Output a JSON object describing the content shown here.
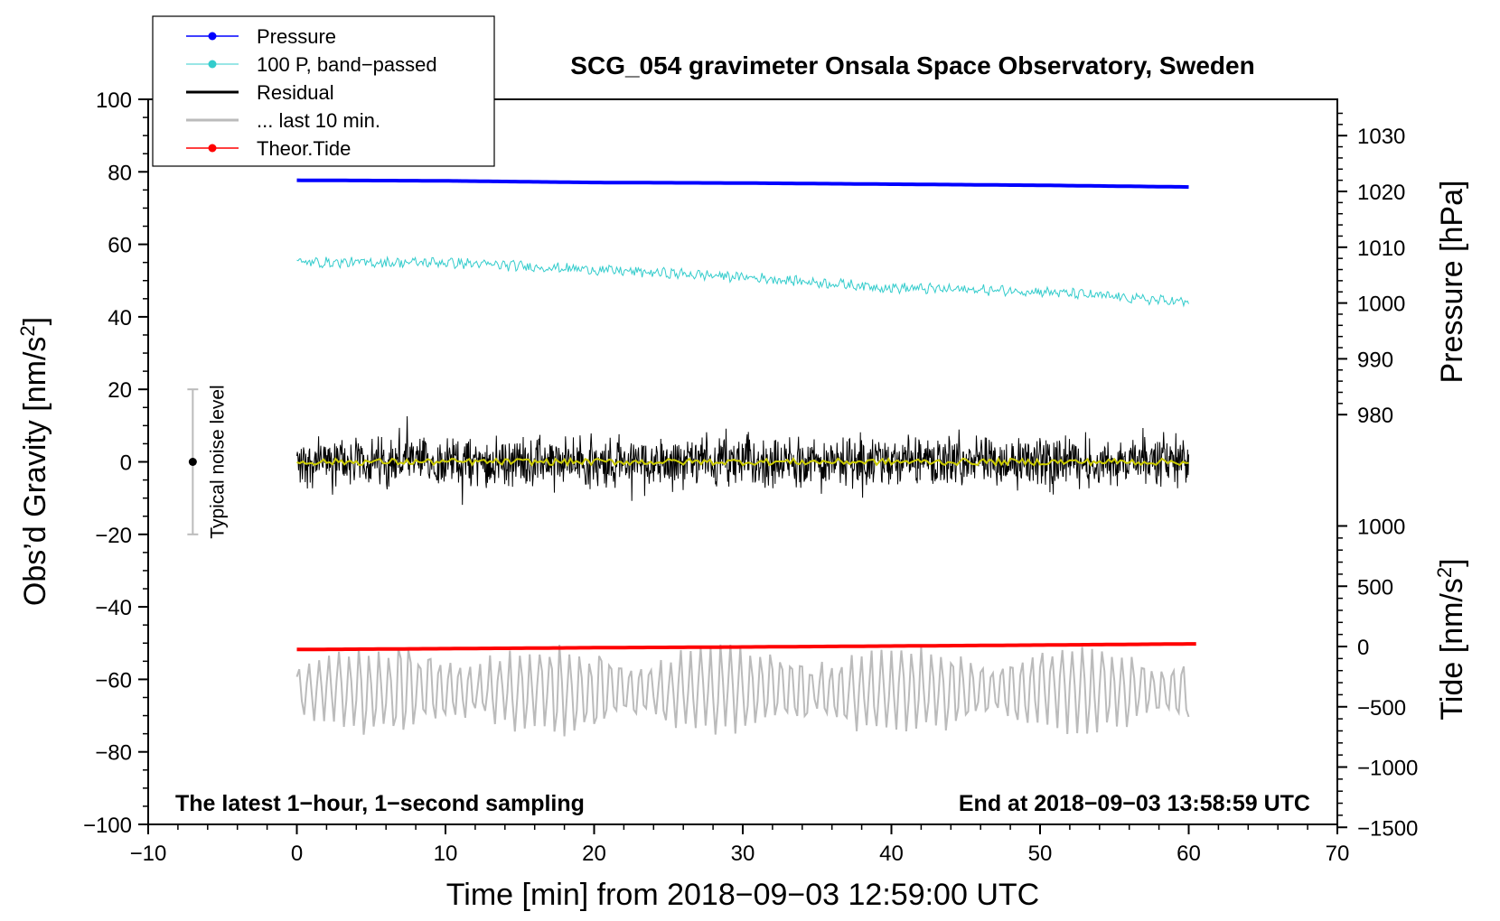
{
  "chart_data": {
    "type": "line",
    "title": "SCG_054 gravimeter Onsala Space Observatory, Sweden",
    "xlabel": "Time [min] from 2018−09−03 12:59:00 UTC",
    "xlim": [
      -10,
      70
    ],
    "xticks": [
      -10,
      0,
      10,
      20,
      30,
      40,
      50,
      60,
      70
    ],
    "xtick_labels": [
      "−10",
      "0",
      "10",
      "20",
      "30",
      "40",
      "50",
      "60",
      "70"
    ],
    "left_axis": {
      "label_main": "Obs’d Gravity [nm/s",
      "label_sup": "2",
      "label_end": "]",
      "ylim": [
        -100,
        100
      ],
      "ticks": [
        -100,
        -80,
        -60,
        -40,
        -20,
        0,
        20,
        40,
        60,
        80,
        100
      ],
      "tick_labels": [
        "−100",
        "−80",
        "−60",
        "−40",
        "−20",
        "0",
        "20",
        "40",
        "60",
        "80",
        "100"
      ]
    },
    "pressure_axis": {
      "label": "Pressure [hPa]",
      "ticks": [
        980,
        990,
        1000,
        1010,
        1020,
        1030
      ],
      "tick_labels": [
        "980",
        "990",
        "1000",
        "1010",
        "1020",
        "1030"
      ]
    },
    "tide_axis": {
      "label_main": "Tide [nm/s",
      "label_sup": "2",
      "label_end": "]",
      "ticks": [
        -1500,
        -1000,
        -500,
        0,
        500,
        1000
      ],
      "tick_labels": [
        "−1500",
        "−1000",
        "−500",
        "0",
        "500",
        "1000"
      ]
    },
    "series": [
      {
        "name": "Pressure",
        "color": "#0000ff",
        "x": [
          0,
          10,
          20,
          30,
          40,
          50,
          60
        ],
        "y_hpa": [
          1022.0,
          1021.9,
          1021.6,
          1021.5,
          1021.3,
          1021.1,
          1020.8
        ]
      },
      {
        "name": "100 P, band−passed",
        "color": "#33cccc",
        "x": [
          0,
          10,
          20,
          30,
          40,
          50,
          60
        ],
        "y": [
          55,
          55,
          53,
          51,
          48,
          47,
          44
        ]
      },
      {
        "name": "Residual",
        "color": "#000000",
        "x": [
          0,
          60
        ],
        "y": [
          0,
          0
        ],
        "amplitude": 8
      },
      {
        "name": "... last 10 min.",
        "color": "#bbbbbb",
        "x": [
          0,
          60
        ],
        "y": [
          -63,
          -63
        ],
        "amplitude": 10
      },
      {
        "name": "Theor.Tide",
        "color": "#ff0000",
        "x": [
          0,
          10,
          20,
          30,
          40,
          50,
          60.5
        ],
        "y_tide": [
          -25,
          -18,
          -10,
          -4,
          4,
          12,
          22
        ]
      }
    ],
    "noise_bar": {
      "x": -7,
      "y_low": -20,
      "y_high": 20,
      "y_center": 0,
      "label": "Typical noise level"
    },
    "annotation_left": "The latest 1−hour, 1−second sampling",
    "annotation_right": "End at 2018−09−03 13:58:59 UTC",
    "legend_position": "top-left"
  }
}
